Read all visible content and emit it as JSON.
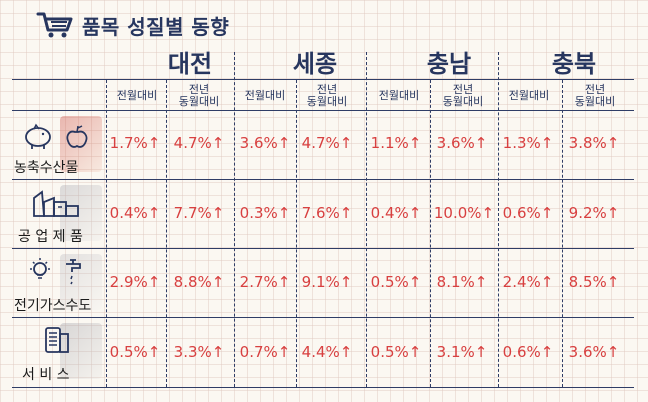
{
  "title": "품목 성질별 동향",
  "regions": [
    "대전",
    "세종",
    "충남",
    "충북"
  ],
  "sub_headers": {
    "mom": "전월대비",
    "yoy_line1": "전년",
    "yoy_line2": "동월대비"
  },
  "rows": [
    {
      "label": "농축수산물",
      "icon": "pig-and-apple-icon",
      "values": [
        "1.7%↑",
        "4.7%↑",
        "3.6%↑",
        "4.7%↑",
        "1.1%↑",
        "3.6%↑",
        "1.3%↑",
        "3.8%↑"
      ]
    },
    {
      "label": "공 업 제 품",
      "icon": "factory-icon",
      "values": [
        "0.4%↑",
        "7.7%↑",
        "0.3%↑",
        "7.6%↑",
        "0.4%↑",
        "10.0%↑",
        "0.6%↑",
        "9.2%↑"
      ]
    },
    {
      "label": "전기가스수도",
      "icon": "bulb-and-faucet-icon",
      "values": [
        "2.9%↑",
        "8.8%↑",
        "2.7%↑",
        "9.1%↑",
        "0.5%↑",
        "8.1%↑",
        "2.4%↑",
        "8.5%↑"
      ]
    },
    {
      "label": "서 비 스",
      "icon": "receipt-icon",
      "values": [
        "0.5%↑",
        "3.3%↑",
        "0.7%↑",
        "4.4%↑",
        "0.5%↑",
        "3.1%↑",
        "0.6%↑",
        "3.6%↑"
      ]
    }
  ],
  "colors": {
    "navy": "#27365f",
    "red": "#d84040"
  }
}
